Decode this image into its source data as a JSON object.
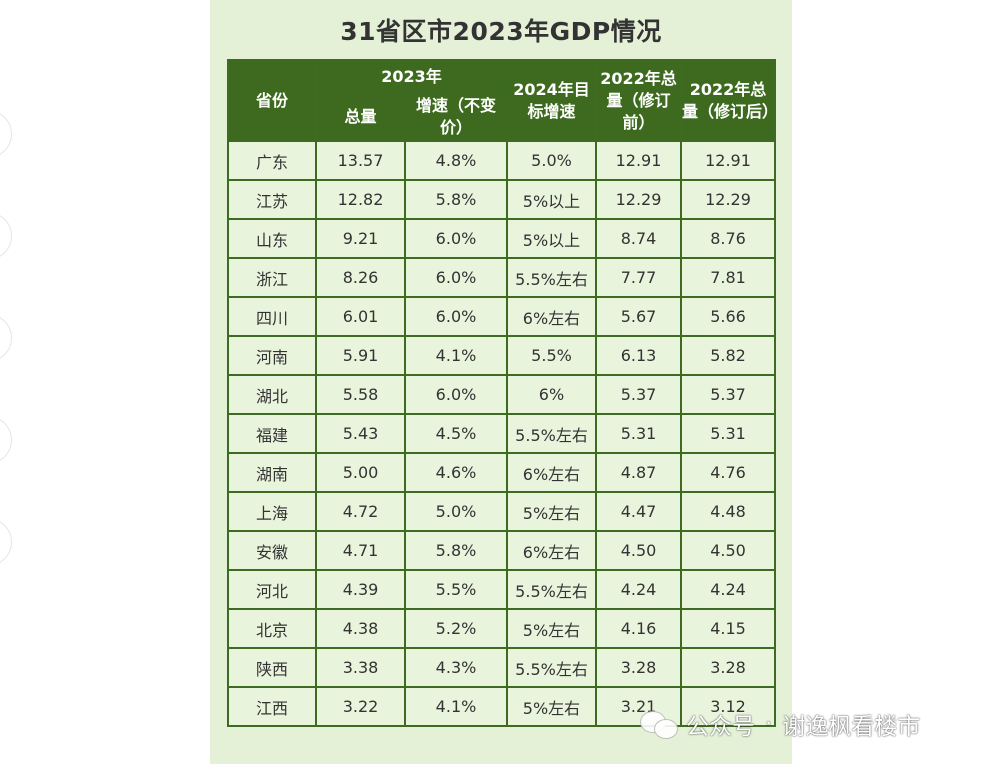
{
  "title": "31省区市2023年GDP情况",
  "header": {
    "province": "省份",
    "year_2023": "2023年",
    "total": "总量",
    "growth": "增速（不变价）",
    "target_2024": "2024年目标增速",
    "total_2022_before": "2022年总量（修订前）",
    "total_2022_after": "2022年总量（修订后）"
  },
  "rows": [
    {
      "province": "广东",
      "total": "13.57",
      "growth": "4.8%",
      "target": "5.0%",
      "before": "12.91",
      "after": "12.91"
    },
    {
      "province": "江苏",
      "total": "12.82",
      "growth": "5.8%",
      "target": "5%以上",
      "before": "12.29",
      "after": "12.29"
    },
    {
      "province": "山东",
      "total": "9.21",
      "growth": "6.0%",
      "target": "5%以上",
      "before": "8.74",
      "after": "8.76"
    },
    {
      "province": "浙江",
      "total": "8.26",
      "growth": "6.0%",
      "target": "5.5%左右",
      "before": "7.77",
      "after": "7.81"
    },
    {
      "province": "四川",
      "total": "6.01",
      "growth": "6.0%",
      "target": "6%左右",
      "before": "5.67",
      "after": "5.66"
    },
    {
      "province": "河南",
      "total": "5.91",
      "growth": "4.1%",
      "target": "5.5%",
      "before": "6.13",
      "after": "5.82"
    },
    {
      "province": "湖北",
      "total": "5.58",
      "growth": "6.0%",
      "target": "6%",
      "before": "5.37",
      "after": "5.37"
    },
    {
      "province": "福建",
      "total": "5.43",
      "growth": "4.5%",
      "target": "5.5%左右",
      "before": "5.31",
      "after": "5.31"
    },
    {
      "province": "湖南",
      "total": "5.00",
      "growth": "4.6%",
      "target": "6%左右",
      "before": "4.87",
      "after": "4.76"
    },
    {
      "province": "上海",
      "total": "4.72",
      "growth": "5.0%",
      "target": "5%左右",
      "before": "4.47",
      "after": "4.48"
    },
    {
      "province": "安徽",
      "total": "4.71",
      "growth": "5.8%",
      "target": "6%左右",
      "before": "4.50",
      "after": "4.50"
    },
    {
      "province": "河北",
      "total": "4.39",
      "growth": "5.5%",
      "target": "5.5%左右",
      "before": "4.24",
      "after": "4.24"
    },
    {
      "province": "北京",
      "total": "4.38",
      "growth": "5.2%",
      "target": "5%左右",
      "before": "4.16",
      "after": "4.15"
    },
    {
      "province": "陕西",
      "total": "3.38",
      "growth": "4.3%",
      "target": "5.5%左右",
      "before": "3.28",
      "after": "3.28"
    },
    {
      "province": "江西",
      "total": "3.22",
      "growth": "4.1%",
      "target": "5%左右",
      "before": "3.21",
      "after": "3.12"
    }
  ],
  "watermark": {
    "text": "公众号",
    "separator": "·",
    "author": "谢逸枫看楼市"
  },
  "colors": {
    "header_bg": "#3d6a1e",
    "panel_bg": "#e4f1d6",
    "cell_bg": "#e9f4dd",
    "border": "#3c6b21"
  }
}
